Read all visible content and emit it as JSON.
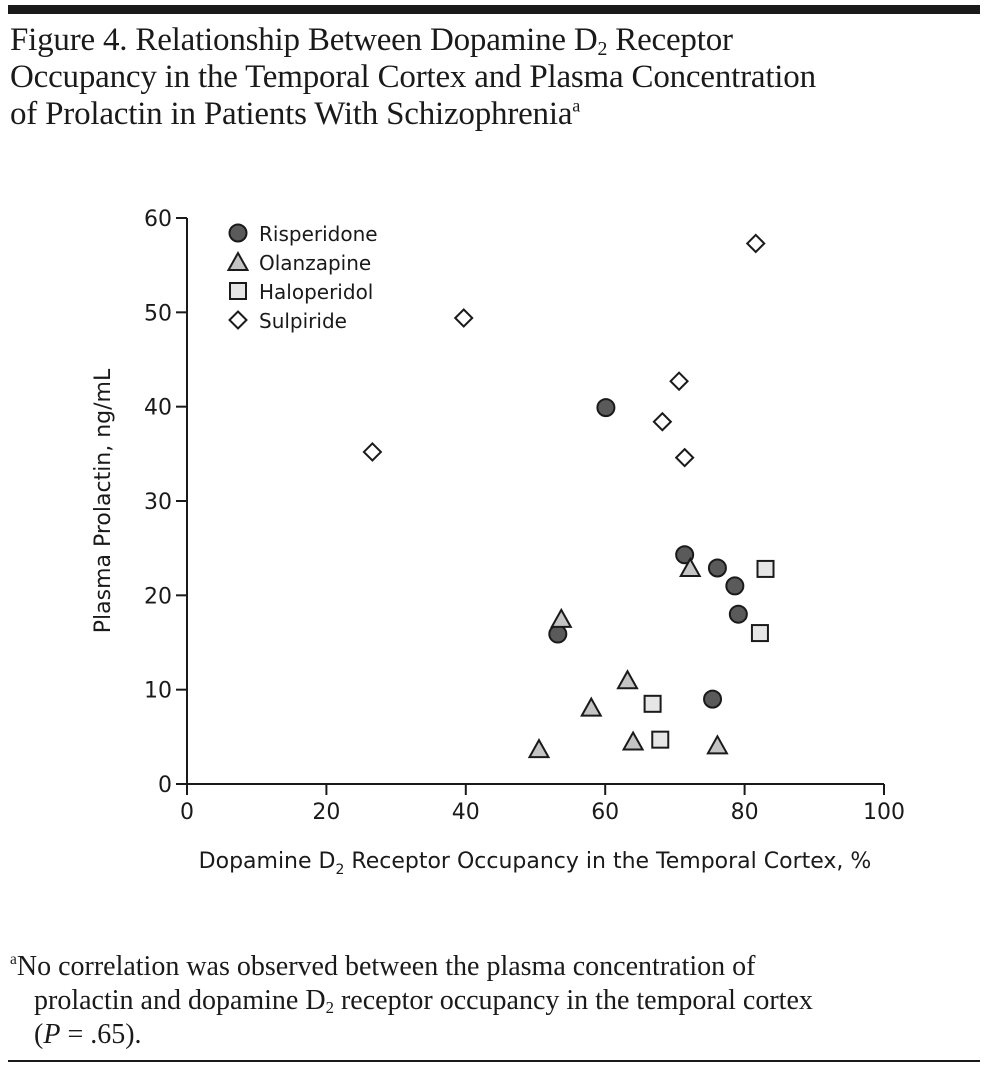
{
  "header": {
    "title_line1_pre": "Figure 4. Relationship Between Dopamine D",
    "title_line1_sub": "2",
    "title_line1_post": " Receptor",
    "title_line2": "Occupancy in the Temporal Cortex and Plasma Concentration",
    "title_line3": "of Prolactin in Patients With Schizophrenia",
    "title_sup": "a"
  },
  "footnote": {
    "marker": "a",
    "line1": "No correlation was observed between the plasma concentration of",
    "line2_pre": "prolactin and dopamine D",
    "line2_sub": "2",
    "line2_post": " receptor occupancy in the temporal cortex",
    "line3_open": "(",
    "line3_p": "P",
    "line3_rest": " = .65)."
  },
  "colors": {
    "ink": "#1a1a1a",
    "risperidone_fill": "#5a5a5a",
    "olanzapine_fill": "#c4c4c4",
    "haloperidol_fill": "#e6e6e6",
    "sulpiride_fill": "#ffffff"
  },
  "chart_data": {
    "type": "scatter",
    "title": "Relationship Between Dopamine D2 Receptor Occupancy in the Temporal Cortex and Plasma Concentration of Prolactin in Patients With Schizophrenia",
    "xlabel_pre": "Dopamine D",
    "xlabel_sub": "2",
    "xlabel_post": " Receptor Occupancy in the Temporal Cortex, %",
    "ylabel": "Plasma Prolactin, ng/mL",
    "xlim": [
      0,
      100
    ],
    "ylim": [
      0,
      60
    ],
    "xticks": [
      "0",
      "20",
      "40",
      "60",
      "80",
      "100"
    ],
    "yticks": [
      "0",
      "10",
      "20",
      "30",
      "40",
      "50",
      "60"
    ],
    "grid": false,
    "legend_position": "top-left",
    "series": [
      {
        "name": "Risperidone",
        "marker": "circle",
        "points": [
          {
            "x": 60.1,
            "y": 39.9
          },
          {
            "x": 71.4,
            "y": 24.3
          },
          {
            "x": 53.2,
            "y": 15.9
          },
          {
            "x": 76.1,
            "y": 22.9
          },
          {
            "x": 78.6,
            "y": 21.0
          },
          {
            "x": 79.1,
            "y": 18.0
          },
          {
            "x": 75.4,
            "y": 9.0
          }
        ]
      },
      {
        "name": "Olanzapine",
        "marker": "triangle",
        "points": [
          {
            "x": 53.7,
            "y": 17.5
          },
          {
            "x": 72.2,
            "y": 22.9
          },
          {
            "x": 63.2,
            "y": 11.0
          },
          {
            "x": 58.0,
            "y": 8.1
          },
          {
            "x": 50.5,
            "y": 3.7
          },
          {
            "x": 64.0,
            "y": 4.5
          },
          {
            "x": 76.1,
            "y": 4.1
          }
        ]
      },
      {
        "name": "Haloperidol",
        "marker": "square",
        "points": [
          {
            "x": 83.0,
            "y": 22.8
          },
          {
            "x": 82.2,
            "y": 16.0
          },
          {
            "x": 66.8,
            "y": 8.5
          },
          {
            "x": 67.9,
            "y": 4.7
          }
        ]
      },
      {
        "name": "Sulpiride",
        "marker": "diamond",
        "points": [
          {
            "x": 26.6,
            "y": 35.2
          },
          {
            "x": 39.7,
            "y": 49.4
          },
          {
            "x": 68.2,
            "y": 38.4
          },
          {
            "x": 70.6,
            "y": 42.7
          },
          {
            "x": 71.4,
            "y": 34.6
          },
          {
            "x": 81.6,
            "y": 57.3
          }
        ]
      }
    ]
  }
}
